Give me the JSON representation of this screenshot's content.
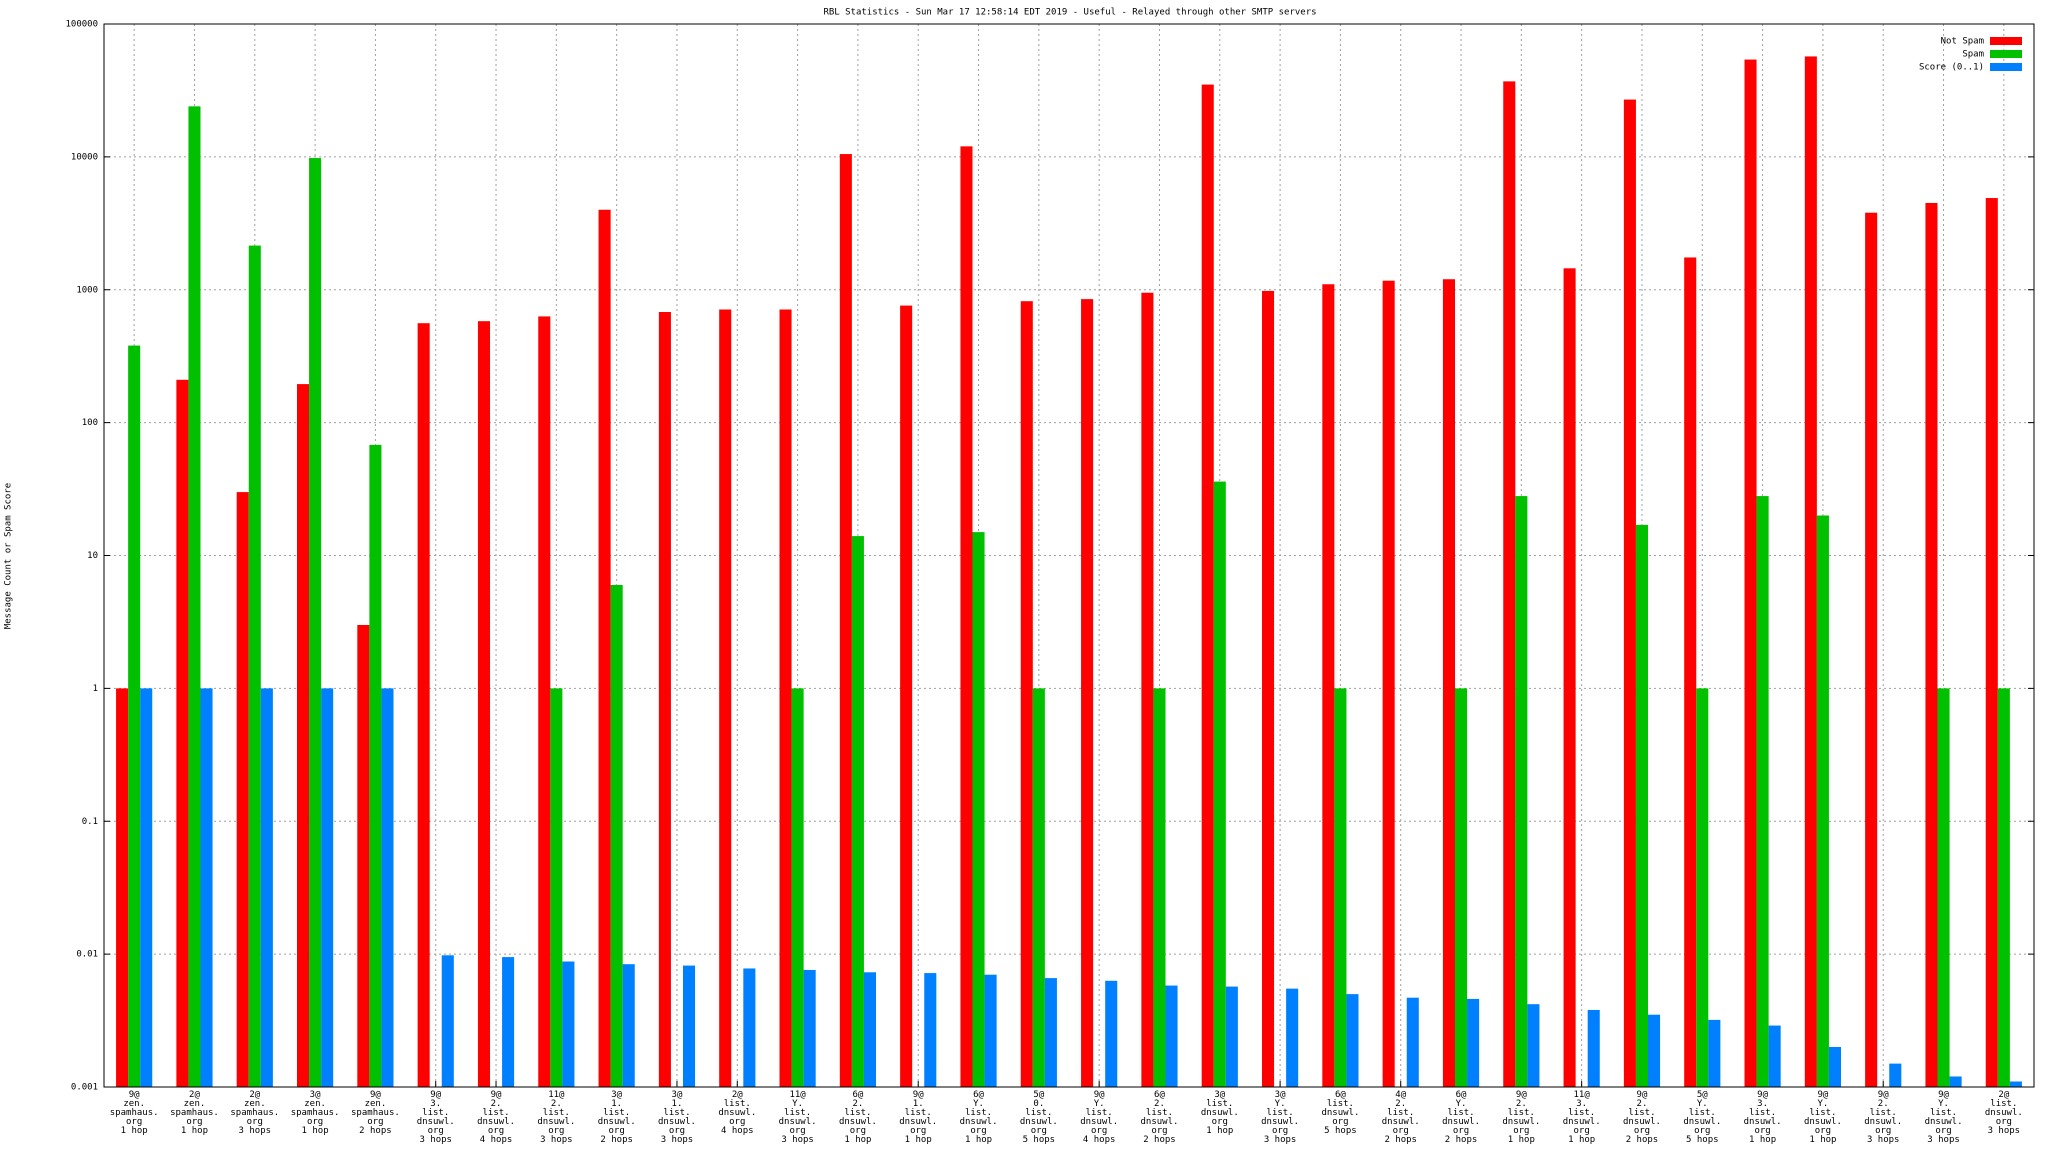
{
  "chart_data": {
    "type": "bar",
    "title": "RBL Statistics - Sun Mar 17 12:58:14 EDT 2019 - Useful - Relayed through other SMTP servers",
    "y_label": "Message Count or Spam Score",
    "log_scale": true,
    "grid": true,
    "legend": "top-right",
    "ylim": [
      0.001,
      100000
    ],
    "yticks": [
      0.001,
      0.01,
      0.1,
      1,
      10,
      100,
      1000,
      10000,
      100000
    ],
    "categories": [
      "9@\nzen.\nspamhaus.\norg\n1 hop",
      "2@\nzen.\nspamhaus.\norg\n1 hop",
      "2@\nzen.\nspamhaus.\norg\n3 hops",
      "3@\nzen.\nspamhaus.\norg\n1 hop",
      "9@\nzen.\nspamhaus.\norg\n2 hops",
      "9@\n3.\nlist.\ndnsuwl.\norg\n3 hops",
      "9@\n2.\nlist.\ndnsuwl.\norg\n4 hops",
      "11@\n2.\nlist.\ndnsuwl.\norg\n3 hops",
      "3@\n1.\nlist.\ndnsuwl.\norg\n2 hops",
      "3@\n1.\nlist.\ndnsuwl.\norg\n3 hops",
      "2@\nlist.\ndnsuwl.\norg\n4 hops",
      "11@\nY.\nlist.\ndnsuwl.\norg\n3 hops",
      "6@\n2.\nlist.\ndnsuwl.\norg\n1 hop",
      "9@\n1.\nlist.\ndnsuwl.\norg\n1 hop",
      "6@\nY.\nlist.\ndnsuwl.\norg\n1 hop",
      "5@\n0.\nlist.\ndnsuwl.\norg\n5 hops",
      "9@\nY.\nlist.\ndnsuwl.\norg\n4 hops",
      "6@\n2.\nlist.\ndnsuwl.\norg\n2 hops",
      "3@\nlist.\ndnsuwl.\norg\n1 hop",
      "3@\nY.\nlist.\ndnsuwl.\norg\n3 hops",
      "6@\nlist.\ndnsuwl.\norg\n5 hops",
      "4@\n2.\nlist.\ndnsuwl.\norg\n2 hops",
      "6@\nY.\nlist.\ndnsuwl.\norg\n2 hops",
      "9@\n2.\nlist.\ndnsuwl.\norg\n1 hop",
      "11@\n3.\nlist.\ndnsuwl.\norg\n1 hop",
      "9@\n2.\nlist.\ndnsuwl.\norg\n2 hops",
      "5@\nY.\nlist.\ndnsuwl.\norg\n5 hops",
      "9@\n3.\nlist.\ndnsuwl.\norg\n1 hop",
      "9@\nY.\nlist.\ndnsuwl.\norg\n1 hop",
      "9@\n2.\nlist.\ndnsuwl.\norg\n3 hops",
      "9@\nY.\nlist.\ndnsuwl.\norg\n3 hops",
      "2@\nlist.\ndnsuwl.\norg\n3 hops"
    ],
    "series": [
      {
        "name": "Not Spam",
        "color": "#ff0000",
        "values": [
          1,
          210,
          30,
          195,
          3,
          560,
          580,
          630,
          4000,
          680,
          710,
          710,
          10500,
          760,
          12000,
          820,
          850,
          950,
          35000,
          980,
          1100,
          1170,
          1200,
          37000,
          1450,
          27000,
          1750,
          54000,
          57000,
          3800,
          4500,
          4900
        ]
      },
      {
        "name": "Spam",
        "color": "#00c000",
        "values": [
          380,
          24000,
          2150,
          9800,
          68,
          null,
          null,
          1,
          6,
          null,
          null,
          1,
          14,
          null,
          15,
          1,
          null,
          1,
          36,
          null,
          1,
          null,
          1,
          28,
          null,
          17,
          1,
          28,
          20,
          null,
          1,
          1
        ]
      },
      {
        "name": "Score (0..1)",
        "color": "#0080ff",
        "values": [
          1,
          1,
          1,
          1,
          1,
          0.0098,
          0.0095,
          0.0088,
          0.0084,
          0.0082,
          0.0078,
          0.0076,
          0.0073,
          0.0072,
          0.007,
          0.0066,
          0.0063,
          0.0058,
          0.0057,
          0.0055,
          0.005,
          0.0047,
          0.0046,
          0.0042,
          0.0038,
          0.0035,
          0.0032,
          0.0029,
          0.002,
          0.0015,
          0.0012,
          0.0011
        ]
      }
    ]
  }
}
